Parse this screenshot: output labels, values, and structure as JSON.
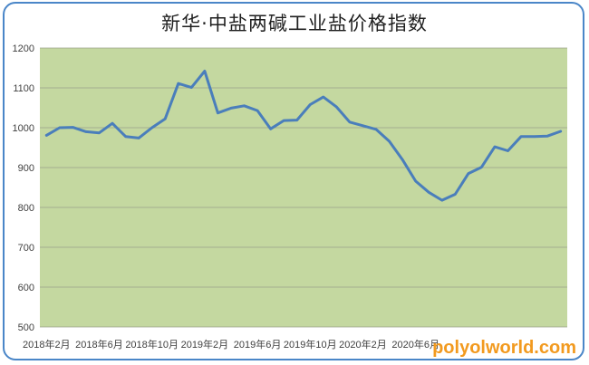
{
  "chart_data": {
    "type": "line",
    "title": "新华·中盐两碱工业盐价格指数",
    "xlabel": "",
    "ylabel": "",
    "ylim": [
      500,
      1200
    ],
    "yticks": [
      500,
      600,
      700,
      800,
      900,
      1000,
      1100,
      1200
    ],
    "grid": true,
    "legend": "none",
    "plot_background": "#c4d8a0",
    "line_color": "#4a7ebb",
    "x_tick_labels": [
      "2018年2月",
      "2018年6月",
      "2018年10月",
      "2019年2月",
      "2019年6月",
      "2019年10月",
      "2020年2月",
      "2020年6月"
    ],
    "x_tick_positions": [
      0,
      4,
      8,
      12,
      16,
      20,
      24,
      28
    ],
    "series": [
      {
        "values": [
          981,
          1000,
          1001,
          990,
          987,
          1011,
          978,
          974,
          1000,
          1022,
          1111,
          1101,
          1142,
          1037,
          1049,
          1055,
          1043,
          997,
          1018,
          1019,
          1058,
          1077,
          1052,
          1014,
          1005,
          996,
          966,
          920,
          866,
          838,
          818,
          833,
          885,
          901,
          952,
          942,
          978,
          978,
          979,
          991
        ]
      }
    ]
  },
  "watermark": "polyolworld.com",
  "watermark_color": "#f29a1f"
}
